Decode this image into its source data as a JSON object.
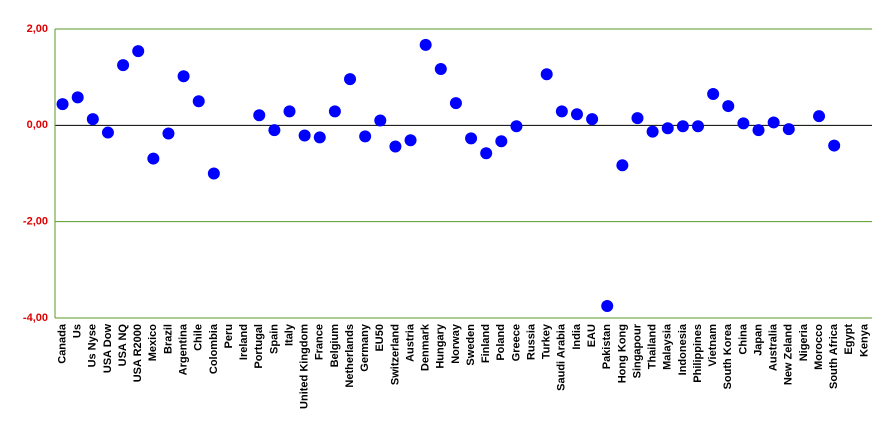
{
  "chart_data": {
    "type": "scatter",
    "categories": [
      "Canada",
      "Us",
      "Us Nyse",
      "USA Dow",
      "USA NQ",
      "USA R2000",
      "Mexico",
      "Brazil",
      "Argentina",
      "Chile",
      "Colombia",
      "Peru",
      "Ireland",
      "Portugal",
      "Spain",
      "Italy",
      "United Kingdom",
      "France",
      "Belgium",
      "Netherlands",
      "Germany",
      "EU50",
      "Switzerland",
      "Austria",
      "Denmark",
      "Hungary",
      "Norway",
      "Sweden",
      "Finland",
      "Poland",
      "Greece",
      "Russia",
      "Turkey",
      "Saudi Arabia",
      "India",
      "EAU",
      "Pakistan",
      "Hong Kong",
      "Singapour",
      "Thailand",
      "Malaysia",
      "Indonesia",
      "Philippines",
      "Vietnam",
      "South Korea",
      "China",
      "Japan",
      "Australia",
      "New Zeland",
      "Nigeria",
      "Morocco",
      "South Africa",
      "Egypt",
      "Kenya"
    ],
    "values": [
      0.44,
      0.58,
      0.13,
      -0.15,
      1.25,
      1.54,
      -0.69,
      -0.17,
      1.02,
      0.5,
      -1.0,
      null,
      null,
      0.21,
      -0.1,
      0.29,
      -0.21,
      -0.25,
      0.29,
      0.96,
      -0.23,
      0.1,
      -0.44,
      -0.31,
      1.67,
      1.17,
      0.46,
      -0.27,
      -0.58,
      -0.33,
      -0.02,
      null,
      1.06,
      0.29,
      0.23,
      0.13,
      -3.75,
      -0.83,
      0.15,
      -0.13,
      -0.06,
      -0.02,
      -0.02,
      0.65,
      0.4,
      0.04,
      -0.1,
      0.06,
      -0.08,
      null,
      0.19,
      -0.42,
      null,
      null
    ],
    "color": "#0000ff",
    "ylim": [
      -4,
      2
    ],
    "yticks": [
      {
        "value": -4,
        "label": "-4,00"
      },
      {
        "value": -2,
        "label": "-2,00"
      },
      {
        "value": 0,
        "label": "0,00"
      },
      {
        "value": 2,
        "label": "2,00"
      }
    ],
    "grid": true
  }
}
